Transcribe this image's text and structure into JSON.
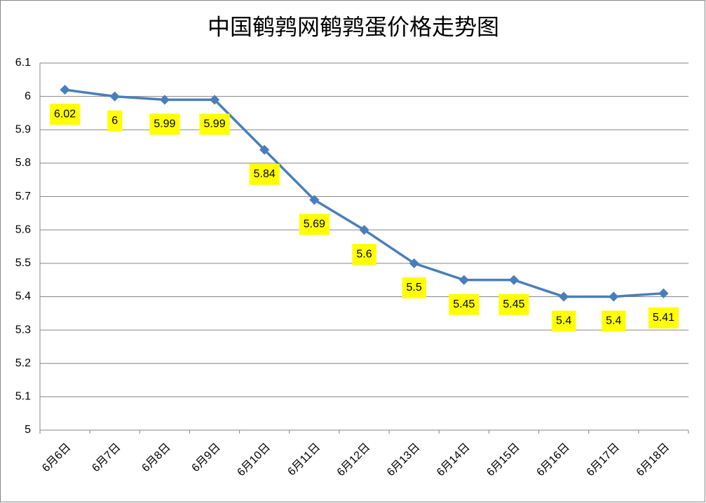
{
  "chart_data": {
    "type": "line",
    "title": "中国鹌鹑网鹌鹑蛋价格走势图",
    "categories": [
      "6月6日",
      "6月7日",
      "6月8日",
      "6月9日",
      "6月10日",
      "6月11日",
      "6月12日",
      "6月13日",
      "6月14日",
      "6月15日",
      "6月16日",
      "6月17日",
      "6月18日"
    ],
    "values": [
      6.02,
      6,
      5.99,
      5.99,
      5.84,
      5.69,
      5.6,
      5.5,
      5.45,
      5.45,
      5.4,
      5.4,
      5.41
    ],
    "color": "#4a7ebb",
    "label_color": "#ffff00",
    "title_color": "#ff0000",
    "ylim": [
      5,
      6.1
    ],
    "yticks": [
      5,
      5.1,
      5.2,
      5.3,
      5.4,
      5.5,
      5.6,
      5.7,
      5.8,
      5.9,
      6,
      6.1
    ],
    "grid": true
  }
}
